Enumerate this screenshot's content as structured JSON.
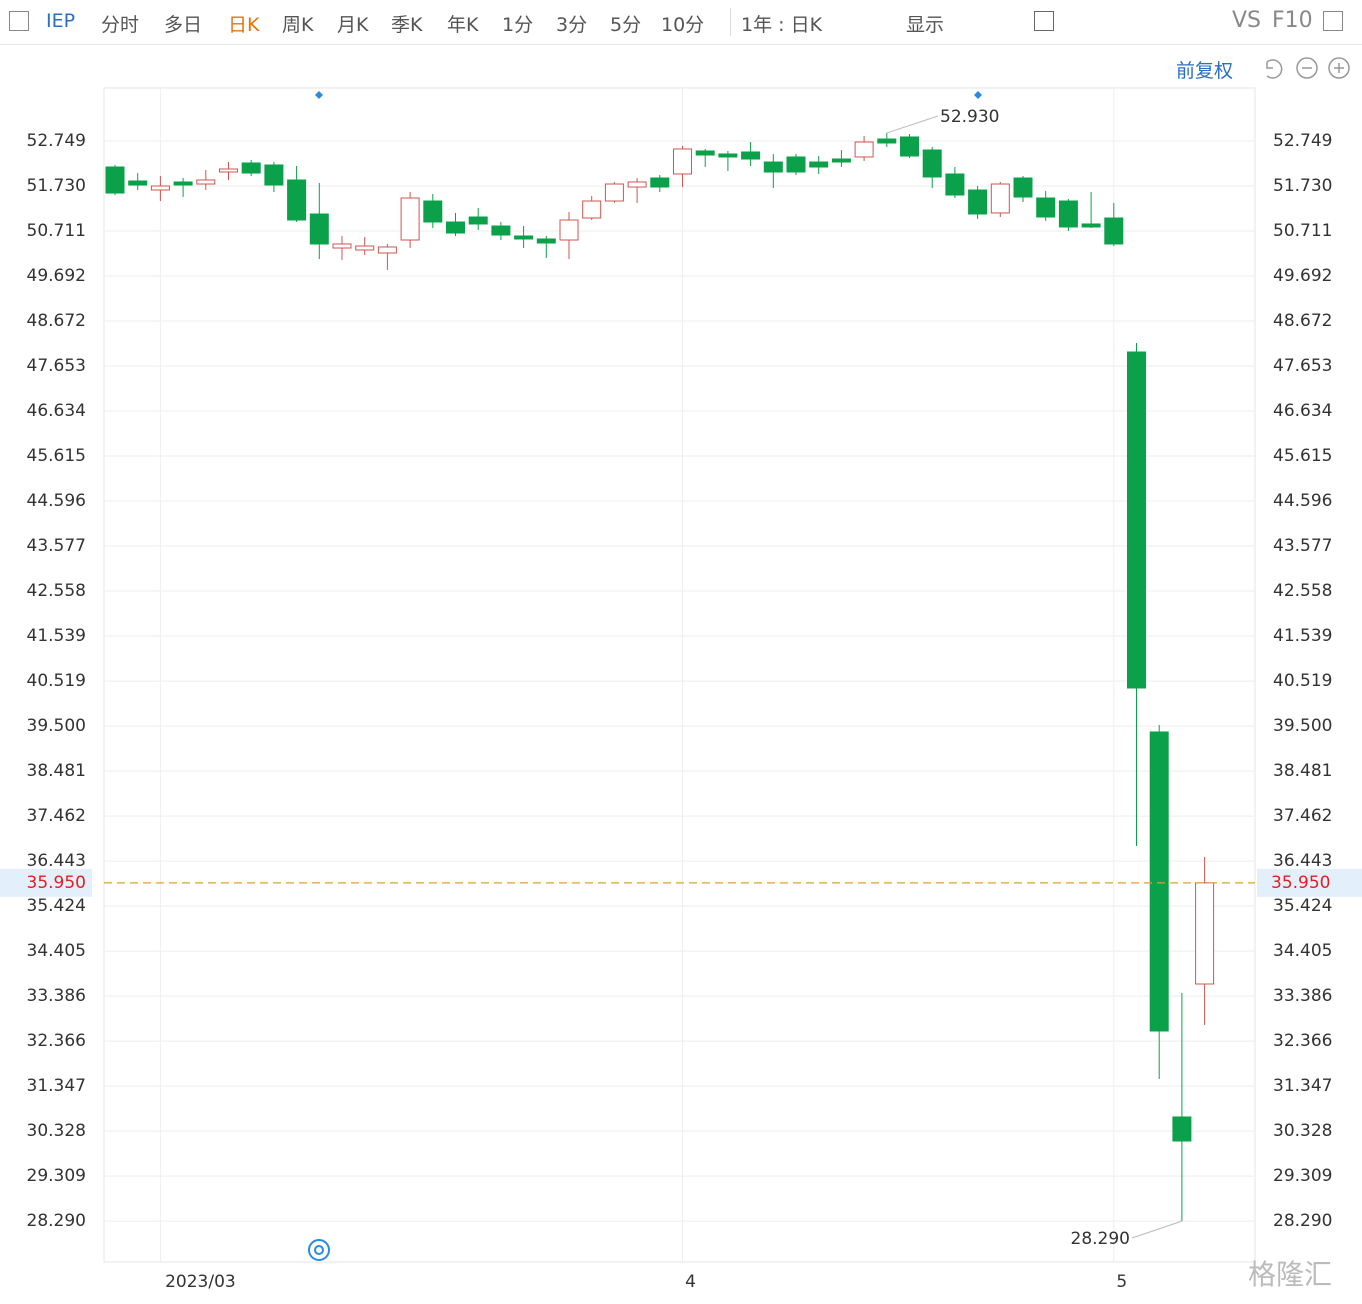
{
  "toolbar": {
    "symbol": "IEP",
    "tabs": [
      "分时",
      "多日",
      "日K",
      "周K",
      "月K",
      "季K",
      "年K",
      "1分",
      "3分",
      "5分",
      "10分"
    ],
    "range": "1年 : 日K",
    "display": "显示",
    "vs": "VS",
    "f10": "F10"
  },
  "adjust": "前复权",
  "watermark": "格隆汇",
  "chart_data": {
    "type": "candlestick",
    "categories": [
      null,
      null,
      "2023/03",
      null,
      null,
      null,
      null,
      null,
      null,
      null,
      null,
      null,
      null,
      null,
      null,
      null,
      null,
      null,
      null,
      null,
      null,
      null,
      null,
      null,
      null,
      "4",
      null,
      null,
      null,
      null,
      null,
      null,
      null,
      null,
      null,
      null,
      null,
      null,
      null,
      null,
      null,
      null,
      null,
      null,
      "5",
      null,
      null,
      null,
      null
    ],
    "open": [
      52.16,
      51.843,
      51.639,
      51.821,
      51.775,
      52.047,
      52.251,
      52.206,
      51.866,
      51.096,
      50.326,
      50.281,
      50.213,
      50.507,
      51.39,
      50.915,
      51.028,
      50.824,
      50.598,
      50.53,
      50.507,
      51.005,
      51.39,
      51.707,
      51.911,
      52.002,
      52.523,
      52.455,
      52.5,
      52.273,
      52.387,
      52.273,
      52.341,
      52.387,
      52.794,
      52.84,
      52.545,
      52.002,
      51.639,
      51.119,
      51.911,
      51.458,
      51.39,
      50.87,
      51.005,
      47.971,
      39.367,
      30.649,
      33.66
    ],
    "high": [
      52.206,
      52.024,
      51.956,
      51.911,
      52.092,
      52.273,
      52.319,
      52.273,
      52.183,
      51.798,
      50.598,
      50.575,
      50.417,
      51.594,
      51.549,
      51.119,
      51.232,
      50.915,
      50.824,
      50.598,
      51.141,
      51.504,
      51.821,
      51.911,
      51.979,
      52.636,
      52.568,
      52.523,
      52.726,
      52.455,
      52.455,
      52.409,
      52.545,
      52.862,
      52.93,
      52.907,
      52.613,
      52.16,
      51.73,
      51.821,
      51.956,
      51.617,
      51.436,
      51.594,
      51.345,
      48.175,
      39.525,
      33.456,
      36.536
    ],
    "low": [
      51.526,
      51.639,
      51.39,
      51.481,
      51.639,
      51.866,
      51.956,
      51.594,
      50.915,
      50.077,
      50.055,
      50.168,
      49.828,
      50.326,
      50.779,
      50.598,
      50.734,
      50.507,
      50.326,
      50.1,
      50.077,
      50.96,
      51.345,
      51.345,
      51.594,
      51.707,
      52.16,
      52.07,
      52.183,
      51.685,
      51.979,
      52.002,
      52.16,
      52.296,
      52.613,
      52.364,
      51.685,
      51.458,
      50.983,
      51.028,
      51.368,
      50.938,
      50.711,
      50.779,
      50.371,
      36.785,
      31.509,
      28.29,
      32.732
    ],
    "close": [
      51.571,
      51.753,
      51.73,
      51.753,
      51.866,
      52.115,
      52.024,
      51.753,
      50.96,
      50.417,
      50.417,
      50.371,
      50.349,
      51.458,
      50.915,
      50.666,
      50.87,
      50.62,
      50.53,
      50.439,
      50.96,
      51.39,
      51.775,
      51.821,
      51.707,
      52.568,
      52.432,
      52.387,
      52.341,
      52.047,
      52.047,
      52.16,
      52.273,
      52.726,
      52.704,
      52.409,
      51.934,
      51.526,
      51.096,
      51.775,
      51.481,
      51.028,
      50.802,
      50.802,
      50.417,
      40.363,
      32.596,
      30.105,
      35.95
    ],
    "up_color": "#d0554f",
    "down_color": "#0aa14a",
    "ylim": [
      27.365,
      53.949
    ],
    "yticks": [
      52.749,
      {
        "value": 51.73,
        "label": "51.730"
      },
      50.711,
      49.692,
      48.672,
      47.653,
      46.634,
      45.615,
      44.596,
      43.577,
      42.558,
      41.539,
      40.519,
      {
        "value": 39.5,
        "label": "39.500"
      },
      38.481,
      37.462,
      36.443,
      35.424,
      34.405,
      33.386,
      32.366,
      31.347,
      30.328,
      29.309,
      {
        "value": 28.29,
        "label": "28.290"
      }
    ],
    "grid": true,
    "current_price": {
      "value": 35.95,
      "label": "35.950"
    },
    "max_label": {
      "value": 52.93,
      "label": "52.930"
    },
    "min_label": {
      "value": 28.29,
      "label": "28.290"
    }
  }
}
